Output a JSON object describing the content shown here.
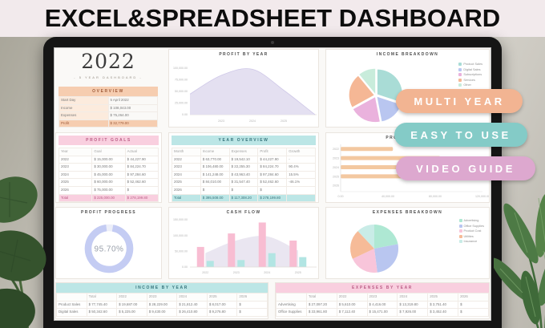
{
  "header": {
    "title": "EXCEL&SPREADSHEET DASHBOARD"
  },
  "ribbons": [
    {
      "label": "MULTI YEAR",
      "color": "#f2b492"
    },
    {
      "label": "EASY TO USE",
      "color": "#84cbc7"
    },
    {
      "label": "VIDEO GUIDE",
      "color": "#dda8cf"
    }
  ],
  "dashboard": {
    "year_card": {
      "year": "2022",
      "subtitle": "- 5 YEAR DASHBOARD -"
    },
    "overview": {
      "title": "OVERVIEW",
      "rows": [
        [
          "Start Day",
          "5 April 2022"
        ],
        [
          "Income",
          "$  108,043.00"
        ],
        [
          "Expenses",
          "$  75,264.00"
        ]
      ],
      "total": [
        "Profit",
        "$  32,779.00"
      ]
    },
    "profit_goals": {
      "title": "PROFIT GOALS",
      "columns": [
        "Year",
        "Goal",
        "Actual"
      ],
      "rows": [
        [
          "2022",
          "$  15,000.00",
          "$  44,227.90"
        ],
        [
          "2023",
          "$  30,000.00",
          "$  84,224.70"
        ],
        [
          "2024",
          "$  45,000.00",
          "$  97,284.60"
        ],
        [
          "2025",
          "$  60,000.00",
          "$  52,462.60"
        ],
        [
          "2026",
          "$  75,000.00",
          "$"
        ]
      ],
      "total": [
        "Total",
        "$  225,000.00",
        "$  278,199.80"
      ]
    },
    "year_overview": {
      "title": "YEAR OVERVIEW",
      "columns": [
        "Month",
        "Income",
        "Expenses",
        "Profit",
        "Growth"
      ],
      "rows": [
        [
          "2022",
          "$  63,770.00",
          "$  19,542.10",
          "$  44,227.90",
          "-"
        ],
        [
          "2023",
          "$  106,480.00",
          "$  22,255.30",
          "$  84,224.70",
          "90.4%"
        ],
        [
          "2024",
          "$  141,248.00",
          "$  43,963.40",
          "$  97,284.60",
          "15.5%"
        ],
        [
          "2025",
          "$  84,010.00",
          "$  31,547.40",
          "$  52,462.60",
          "-46.1%"
        ],
        [
          "2026",
          "$",
          "$",
          "$",
          ""
        ]
      ],
      "total": [
        "Total",
        "$  395,508.00",
        "$  117,308.20",
        "$  278,199.80",
        ""
      ]
    },
    "income_by_year": {
      "title": "INCOME BY YEAR",
      "columns": [
        "",
        "Total",
        "2022",
        "2023",
        "2024",
        "2025",
        "2026"
      ],
      "rows": [
        [
          "Product Sales",
          "$  77,745.40",
          "$  19,687.00",
          "$  28,229.00",
          "$  21,812.40",
          "$  8,017.00",
          "$"
        ],
        [
          "Digital Sales",
          "$  50,342.60",
          "$  5,225.00",
          "$  9,430.00",
          "$  26,410.80",
          "$  9,276.80",
          "$"
        ]
      ]
    },
    "expenses_by_year": {
      "title": "EXPENSES BY YEAR",
      "columns": [
        "",
        "Total",
        "2022",
        "2023",
        "2024",
        "2025",
        "2026"
      ],
      "rows": [
        [
          "Advertising",
          "$  27,097.20",
          "$  5,610.00",
          "$  4,416.00",
          "$  13,319.80",
          "$  3,751.40",
          "$"
        ],
        [
          "Office Supplies",
          "$  33,961.80",
          "$  7,112.40",
          "$  15,471.00",
          "$  7,926.00",
          "$  3,452.40",
          "$"
        ]
      ]
    }
  },
  "chart_data": [
    {
      "id": "profit_by_year",
      "type": "area",
      "title": "PROFIT BY YEAR",
      "x": [
        "2022",
        "2023",
        "2024",
        "2025",
        "2026"
      ],
      "values": [
        44227.9,
        84224.7,
        97284.6,
        52462.6,
        0
      ],
      "ylim": [
        0,
        110000
      ],
      "yticks": [
        "100,000.00",
        "75,000.00",
        "50,000.00",
        "25,000.00",
        "0.00"
      ],
      "xtick_labels": [
        "2023",
        "2024",
        "2025"
      ],
      "xtick_idx": [
        1,
        2,
        3
      ],
      "fill": "#e4e0f1",
      "stroke": "#cfc8e8"
    },
    {
      "id": "cash_flow",
      "type": "bar+area",
      "title": "CASH FLOW",
      "categories": [
        "2022",
        "2023",
        "2024",
        "2025"
      ],
      "series": [
        {
          "name": "Income",
          "color": "#f8bdd2",
          "values": [
            63770,
            106480,
            141248,
            84010
          ]
        },
        {
          "name": "Expenses",
          "color": "#b2e5e3",
          "values": [
            19542.1,
            22255.3,
            43963.4,
            31547.4
          ]
        },
        {
          "name": "Profit",
          "type": "area",
          "color": "#e6e2ef",
          "values": [
            44227.9,
            84224.7,
            97284.6,
            52462.6
          ]
        }
      ],
      "ylim": [
        0,
        150000
      ],
      "yticks": [
        "150,000.00",
        "100,000.00",
        "50,000.00",
        "0.00"
      ]
    },
    {
      "id": "income_breakdown",
      "type": "pie",
      "title": "INCOME BREAKDOWN",
      "exploded": true,
      "slices": [
        {
          "label": "Product Sales",
          "value": 30,
          "color": "#a9dcd6"
        },
        {
          "label": "Digital Sales",
          "value": 17,
          "color": "#b9c6f0"
        },
        {
          "label": "Subscriptions",
          "value": 20,
          "color": "#eab2dd"
        },
        {
          "label": "Services",
          "value": 22,
          "color": "#f5b795"
        },
        {
          "label": "Other",
          "value": 11,
          "color": "#c8ecdb"
        }
      ]
    },
    {
      "id": "profit_goals_chart",
      "type": "hbar",
      "title": "PROFIT GOALS",
      "categories": [
        "2022",
        "2023",
        "2024",
        "2025",
        "2026"
      ],
      "values": [
        44227.9,
        84224.7,
        97284.6,
        52462.6,
        0
      ],
      "xlim": [
        0,
        120000
      ],
      "xticks": [
        "0.00",
        "40,000.00",
        "80,000.00",
        "120,000.00"
      ],
      "color": "#f3c8a0"
    },
    {
      "id": "expenses_breakdown",
      "type": "pie",
      "title": "EXPENSES BREAKDOWN",
      "exploded": false,
      "slices": [
        {
          "label": "Advertising",
          "value": 22,
          "color": "#aee8d3"
        },
        {
          "label": "Office Supplies",
          "value": 26,
          "color": "#b9c6f0"
        },
        {
          "label": "Product Cost",
          "value": 20,
          "color": "#f8c5da"
        },
        {
          "label": "Utilities",
          "value": 20,
          "color": "#f6bb98"
        },
        {
          "label": "Insurance",
          "value": 12,
          "color": "#c9ece7"
        }
      ]
    },
    {
      "id": "profit_progress",
      "type": "donut",
      "title": "PROFIT PROGRESS",
      "value": 95.7,
      "label": "95.70%",
      "color": "#c4ccf3",
      "track": "#edeff9"
    }
  ]
}
